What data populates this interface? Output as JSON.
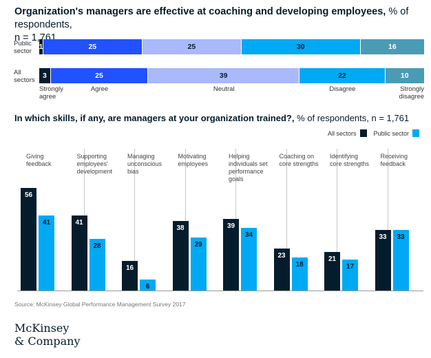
{
  "chart_data": [
    {
      "type": "bar",
      "orientation": "horizontal-stacked",
      "title": "Organization's managers are effective at coaching and developing employees,",
      "subtitle": "% of respondents, n = 1,761",
      "categories": [
        "Strongly agree",
        "Agree",
        "Neutral",
        "Disagree",
        "Strongly disagree"
      ],
      "colors": [
        "#051c2c",
        "#2251ff",
        "#aab9fb",
        "#00a9f4",
        "#4b9bb4"
      ],
      "label_colors": [
        "#ffffff",
        "#ffffff",
        "#051c2c",
        "#051c2c",
        "#ffffff"
      ],
      "rows": [
        {
          "label_line1": "Public",
          "label_line2": "sector",
          "values": [
            1,
            25,
            25,
            30,
            16
          ]
        },
        {
          "label_line1": "All",
          "label_line2": "sectors",
          "values": [
            3,
            25,
            39,
            22,
            10
          ]
        }
      ],
      "category_labels": [
        {
          "line1": "Strongly",
          "line2": "agree"
        },
        {
          "line1": "Agree",
          "line2": ""
        },
        {
          "line1": "Neutral",
          "line2": ""
        },
        {
          "line1": "Disagree",
          "line2": ""
        },
        {
          "line1": "Strongly",
          "line2": "disagree"
        }
      ]
    },
    {
      "type": "bar",
      "orientation": "vertical-grouped",
      "title": "In which skills, if any, are managers at your organization trained?,",
      "subtitle": "% of respondents, n = 1,761",
      "ylim": [
        0,
        60
      ],
      "series": [
        {
          "name": "All sectors",
          "color": "#051c2c",
          "values": [
            56,
            41,
            16,
            38,
            39,
            23,
            21,
            33
          ]
        },
        {
          "name": "Public sector",
          "color": "#00a9f4",
          "values": [
            41,
            28,
            6,
            29,
            34,
            18,
            17,
            33
          ]
        }
      ],
      "categories": [
        [
          "Giving",
          "feedback"
        ],
        [
          "Supporting",
          "employees'",
          "development"
        ],
        [
          "Managing",
          "unconscious",
          "bias"
        ],
        [
          "Motivating",
          "employees"
        ],
        [
          "Helping",
          "individuals set",
          "performance",
          "goals"
        ],
        [
          "Coaching on",
          "core strengths"
        ],
        [
          "Identifying",
          "core strengths"
        ],
        [
          "Receiving",
          "feedback"
        ]
      ]
    }
  ],
  "chart1": {
    "title_bold": "Organization's managers are effective at coaching and developing employees,",
    "title_rest": " % of respondents,",
    "title_line2": "n = 1,761"
  },
  "chart2": {
    "title_bold": "In which skills, if any, are managers at your organization trained?,",
    "title_rest": " % of respondents, n = 1,761"
  },
  "source": "Source: McKinsey Global Performance Management Survey 2017",
  "logo": {
    "line1": "McKinsey",
    "line2": "& Company"
  }
}
